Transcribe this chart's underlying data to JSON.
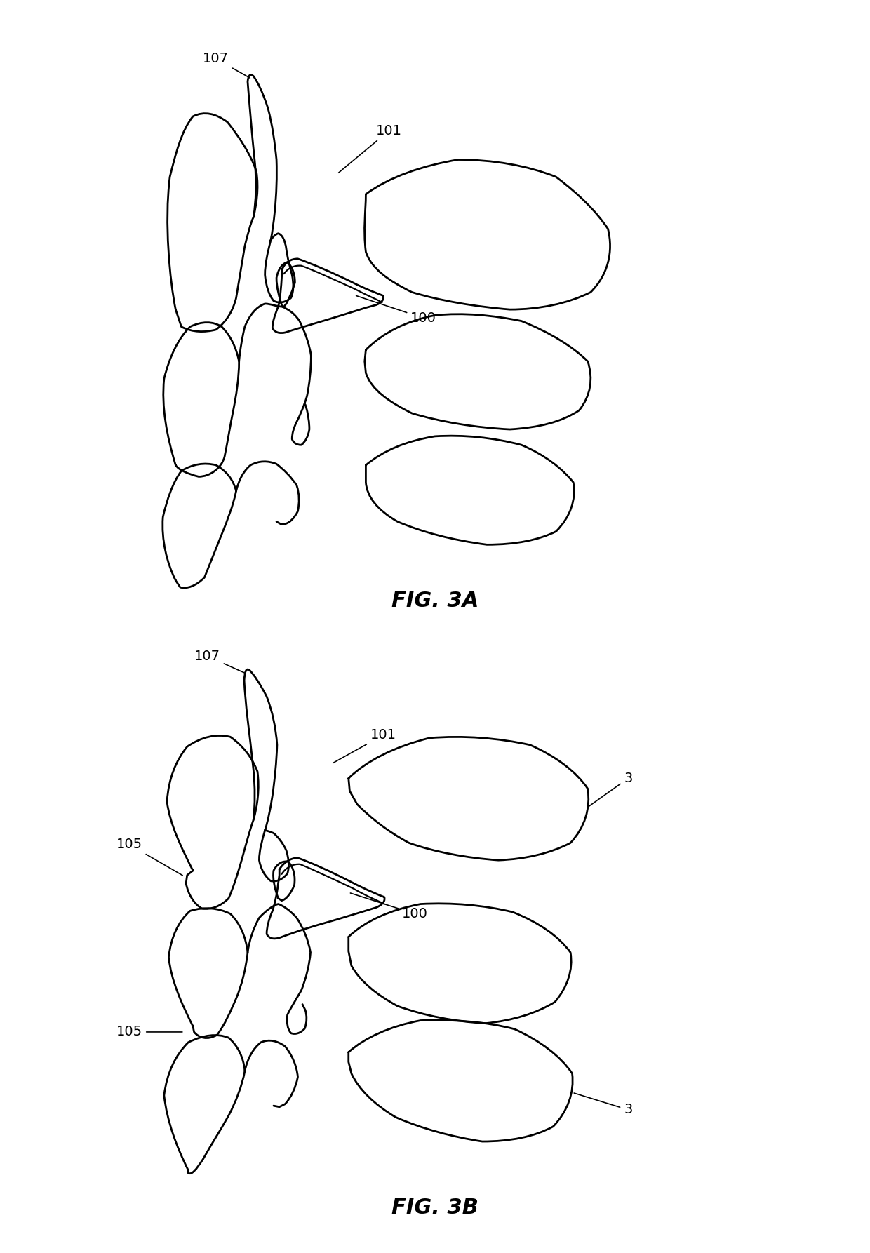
{
  "fig_title_a": "FIG. 3A",
  "fig_title_b": "FIG. 3B",
  "background_color": "#ffffff",
  "line_color": "#000000",
  "line_width": 2.0
}
